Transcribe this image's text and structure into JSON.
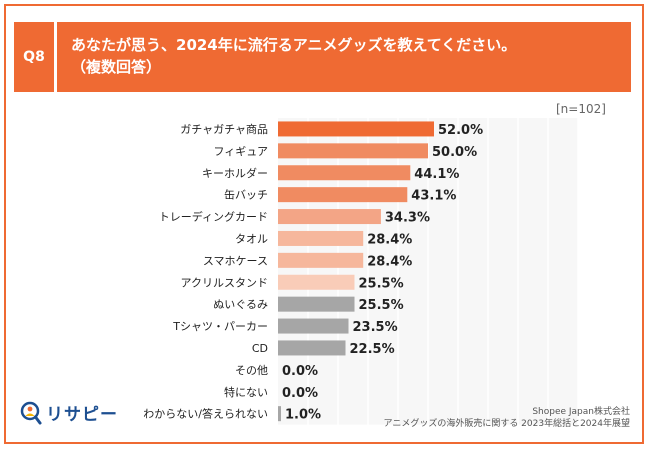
{
  "question": {
    "tag": "Q8",
    "line1": "あなたが思う、2024年に流行るアニメグッズを教えてください。",
    "line2": "（複数回答）"
  },
  "sample_size": "[n=102]",
  "footer": {
    "line1": "Shopee Japan株式会社",
    "line2": "アニメグッズの海外販売に関する 2023年総括と2024年展望"
  },
  "logo": {
    "text": "リサピー",
    "icon": "magnifier-person-icon"
  },
  "colors": {
    "accent": "#ef6a33",
    "gray": "#a6a6a6"
  },
  "chart_data": {
    "type": "bar",
    "orientation": "horizontal",
    "unit": "%",
    "xlim": [
      0,
      100
    ],
    "grid": true,
    "categories": [
      "ガチャガチャ商品",
      "フィギュア",
      "キーホルダー",
      "缶バッチ",
      "トレーディングカード",
      "タオル",
      "スマホケース",
      "アクリルスタンド",
      "ぬいぐるみ",
      "Tシャツ・パーカー",
      "CD",
      "その他",
      "特にない",
      "わからない/答えられない"
    ],
    "values": [
      52.0,
      50.0,
      44.1,
      43.1,
      34.3,
      28.4,
      28.4,
      25.5,
      25.5,
      23.5,
      22.5,
      0.0,
      0.0,
      1.0
    ],
    "value_labels": [
      "52.0%",
      "50.0%",
      "44.1%",
      "43.1%",
      "34.3%",
      "28.4%",
      "28.4%",
      "25.5%",
      "25.5%",
      "23.5%",
      "22.5%",
      "0.0%",
      "0.0%",
      "1.0%"
    ],
    "bar_colors": [
      "#ef6a33",
      "#f08b61",
      "#f08b61",
      "#f08b61",
      "#f3a586",
      "#f6b79c",
      "#f6b79c",
      "#f9ccb8",
      "#a6a6a6",
      "#a6a6a6",
      "#a6a6a6",
      "#a6a6a6",
      "#a6a6a6",
      "#a6a6a6"
    ]
  }
}
